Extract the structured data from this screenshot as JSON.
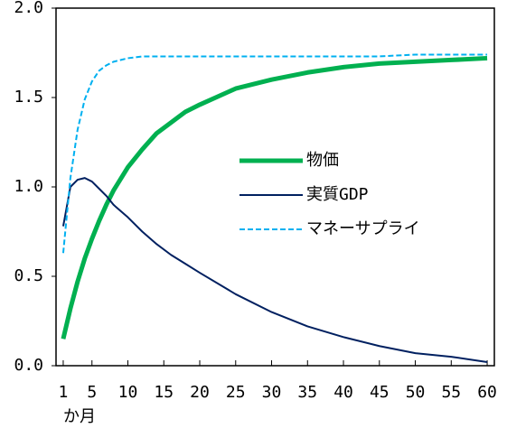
{
  "chart_data": {
    "type": "line",
    "x_label": "か月",
    "x": [
      1,
      2,
      3,
      4,
      5,
      6,
      7,
      8,
      10,
      12,
      14,
      16,
      18,
      20,
      25,
      30,
      35,
      40,
      45,
      50,
      55,
      60
    ],
    "series": [
      {
        "name": "物価",
        "color": "#00b050",
        "width": 5,
        "dash": false,
        "values": [
          0.15,
          0.32,
          0.47,
          0.6,
          0.71,
          0.81,
          0.9,
          0.98,
          1.11,
          1.21,
          1.3,
          1.36,
          1.42,
          1.46,
          1.55,
          1.6,
          1.64,
          1.67,
          1.69,
          1.7,
          1.71,
          1.72
        ]
      },
      {
        "name": "実質GDP",
        "color": "#002060",
        "width": 2,
        "dash": false,
        "values": [
          0.78,
          1.0,
          1.04,
          1.05,
          1.03,
          0.99,
          0.95,
          0.9,
          0.83,
          0.75,
          0.68,
          0.62,
          0.57,
          0.52,
          0.4,
          0.3,
          0.22,
          0.16,
          0.11,
          0.07,
          0.05,
          0.02
        ]
      },
      {
        "name": "マネーサプライ",
        "color": "#00b0f0",
        "width": 2,
        "dash": true,
        "values": [
          0.63,
          1.05,
          1.32,
          1.49,
          1.59,
          1.65,
          1.68,
          1.7,
          1.72,
          1.73,
          1.73,
          1.73,
          1.73,
          1.73,
          1.73,
          1.73,
          1.73,
          1.73,
          1.73,
          1.74,
          1.74,
          1.74
        ]
      }
    ],
    "xlim": [
      0,
      61
    ],
    "xticks": [
      1,
      5,
      10,
      15,
      20,
      25,
      30,
      35,
      40,
      45,
      50,
      55,
      60
    ],
    "ylim": [
      0,
      2
    ],
    "yticks": [
      {
        "value": 0,
        "label": "0.0"
      },
      {
        "value": 0.5,
        "label": "0.5"
      },
      {
        "value": 1,
        "label": "1.0"
      },
      {
        "value": 1.5,
        "label": "1.5"
      },
      {
        "value": 2,
        "label": "2.0"
      }
    ],
    "legend": "right"
  }
}
